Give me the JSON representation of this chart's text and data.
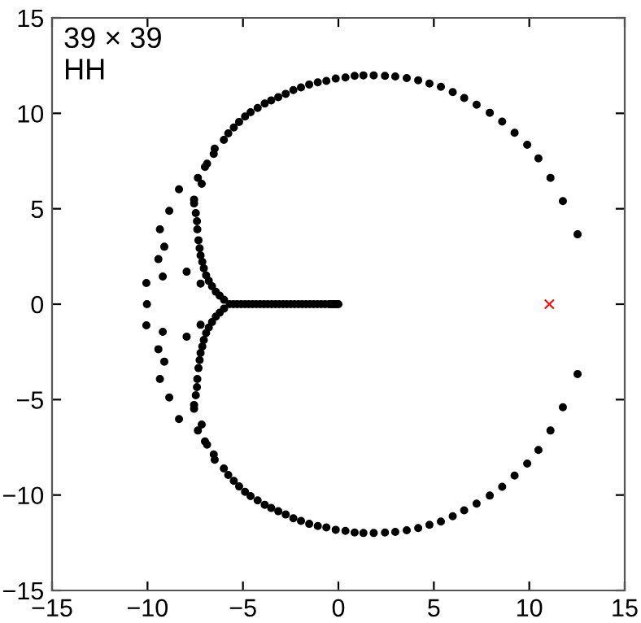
{
  "chart_data": {
    "type": "scatter",
    "annotations": [
      "39 × 39",
      "HH"
    ],
    "xlim": [
      -15,
      15
    ],
    "ylim": [
      -15,
      15
    ],
    "xticks": [
      -15,
      -10,
      -5,
      0,
      5,
      10,
      15
    ],
    "yticks": [
      -15,
      -10,
      -5,
      0,
      5,
      10,
      15
    ],
    "grid": false,
    "legend": false,
    "series": [
      {
        "color": "#000000",
        "marker": "circle",
        "x": [
          12.53,
          11.76,
          11.11,
          10.48,
          9.89,
          9.23,
          8.58,
          7.93,
          7.24,
          6.59,
          5.99,
          5.37,
          4.77,
          4.18,
          3.58,
          2.98,
          2.44,
          1.85,
          1.31,
          0.85,
          0.37,
          -0.14,
          -0.63,
          -1.08,
          -1.53,
          -1.96,
          -2.36,
          -2.76,
          -3.15,
          -3.52,
          -3.86,
          -4.23,
          -4.6,
          -4.89,
          -5.2,
          -5.48,
          -5.77,
          -6.0,
          -6.48,
          -6.53,
          -6.88,
          -6.99,
          -7.36,
          -7.16,
          -7.56,
          -7.56,
          -7.47,
          -7.41,
          -7.39,
          -7.33,
          -7.27,
          -7.22,
          -7.13,
          -7.05,
          -6.93,
          -6.79,
          -6.62,
          -6.42,
          -6.22,
          -5.99,
          -8.35,
          -8.86,
          -9.35,
          -9.12,
          -9.43,
          -9.2,
          -10.06,
          -7.95,
          -7.22,
          12.53,
          11.76,
          11.11,
          10.48,
          9.89,
          9.23,
          8.58,
          7.93,
          7.24,
          6.59,
          5.99,
          5.37,
          4.77,
          4.18,
          3.58,
          2.98,
          2.44,
          1.85,
          1.31,
          0.85,
          0.37,
          -0.14,
          -0.63,
          -1.08,
          -1.53,
          -1.96,
          -2.36,
          -2.76,
          -3.15,
          -3.52,
          -3.86,
          -4.23,
          -4.6,
          -4.89,
          -5.2,
          -5.48,
          -5.77,
          -6.0,
          -6.48,
          -6.53,
          -6.88,
          -6.99,
          -7.36,
          -7.16,
          -7.56,
          -7.56,
          -7.47,
          -7.41,
          -7.39,
          -7.33,
          -7.27,
          -7.22,
          -7.13,
          -7.05,
          -6.93,
          -6.79,
          -6.62,
          -6.42,
          -6.22,
          -5.99,
          -8.35,
          -8.86,
          -9.35,
          -9.12,
          -9.43,
          -9.2,
          -10.06,
          -7.95,
          -7.22,
          -10.03,
          -5.7,
          -5.5,
          -5.3,
          -5.1,
          -4.9,
          -4.7,
          -4.5,
          -4.3,
          -4.1,
          -3.9,
          -3.7,
          -3.5,
          -3.3,
          -3.1,
          -2.9,
          -2.7,
          -2.5,
          -2.3,
          -2.1,
          -1.9,
          -1.7,
          -1.5,
          -1.3,
          -1.1,
          -0.9,
          -0.7,
          -0.5,
          -0.4,
          -0.3,
          -0.2,
          -0.1,
          0
        ],
        "values": [
          3.66,
          5.4,
          6.62,
          7.64,
          8.35,
          8.98,
          9.57,
          10.03,
          10.45,
          10.8,
          11.11,
          11.39,
          11.56,
          11.73,
          11.85,
          11.93,
          11.96,
          11.99,
          11.99,
          11.96,
          11.88,
          11.82,
          11.7,
          11.62,
          11.51,
          11.36,
          11.22,
          11.02,
          10.85,
          10.68,
          10.51,
          10.28,
          10.06,
          9.83,
          9.55,
          9.26,
          8.95,
          8.61,
          8.15,
          7.87,
          7.36,
          7.19,
          6.62,
          6.31,
          5.48,
          5.28,
          4.77,
          4.35,
          3.92,
          3.35,
          2.93,
          2.56,
          2.22,
          1.88,
          1.51,
          1.22,
          0.94,
          0.65,
          0.45,
          0.23,
          6.02,
          4.89,
          3.92,
          3.01,
          2.36,
          1.45,
          1.11,
          1.7,
          1.08,
          -3.66,
          -5.4,
          -6.62,
          -7.64,
          -8.35,
          -8.98,
          -9.57,
          -10.03,
          -10.45,
          -10.8,
          -11.11,
          -11.39,
          -11.56,
          -11.73,
          -11.85,
          -11.93,
          -11.96,
          -11.99,
          -11.99,
          -11.96,
          -11.88,
          -11.82,
          -11.7,
          -11.62,
          -11.51,
          -11.36,
          -11.22,
          -11.02,
          -10.85,
          -10.68,
          -10.51,
          -10.28,
          -10.06,
          -9.83,
          -9.55,
          -9.26,
          -8.95,
          -8.61,
          -8.15,
          -7.87,
          -7.36,
          -7.19,
          -6.62,
          -6.31,
          -5.48,
          -5.28,
          -4.77,
          -4.35,
          -3.92,
          -3.35,
          -2.93,
          -2.56,
          -2.22,
          -1.88,
          -1.51,
          -1.22,
          -0.94,
          -0.65,
          -0.45,
          -0.23,
          -6.02,
          -4.89,
          -3.92,
          -3.01,
          -2.36,
          -1.45,
          -1.11,
          -1.7,
          -1.08,
          0,
          0,
          0,
          0,
          0,
          0,
          0,
          0,
          0,
          0,
          0,
          0,
          0,
          0,
          0,
          0,
          0,
          0,
          0,
          0,
          0,
          0,
          0,
          0,
          0,
          0,
          0,
          0,
          0,
          0,
          0,
          0,
          0
        ]
      },
      {
        "color": "#ff0000",
        "marker": "cross",
        "x": [
          11.05
        ],
        "values": [
          0
        ]
      }
    ]
  }
}
